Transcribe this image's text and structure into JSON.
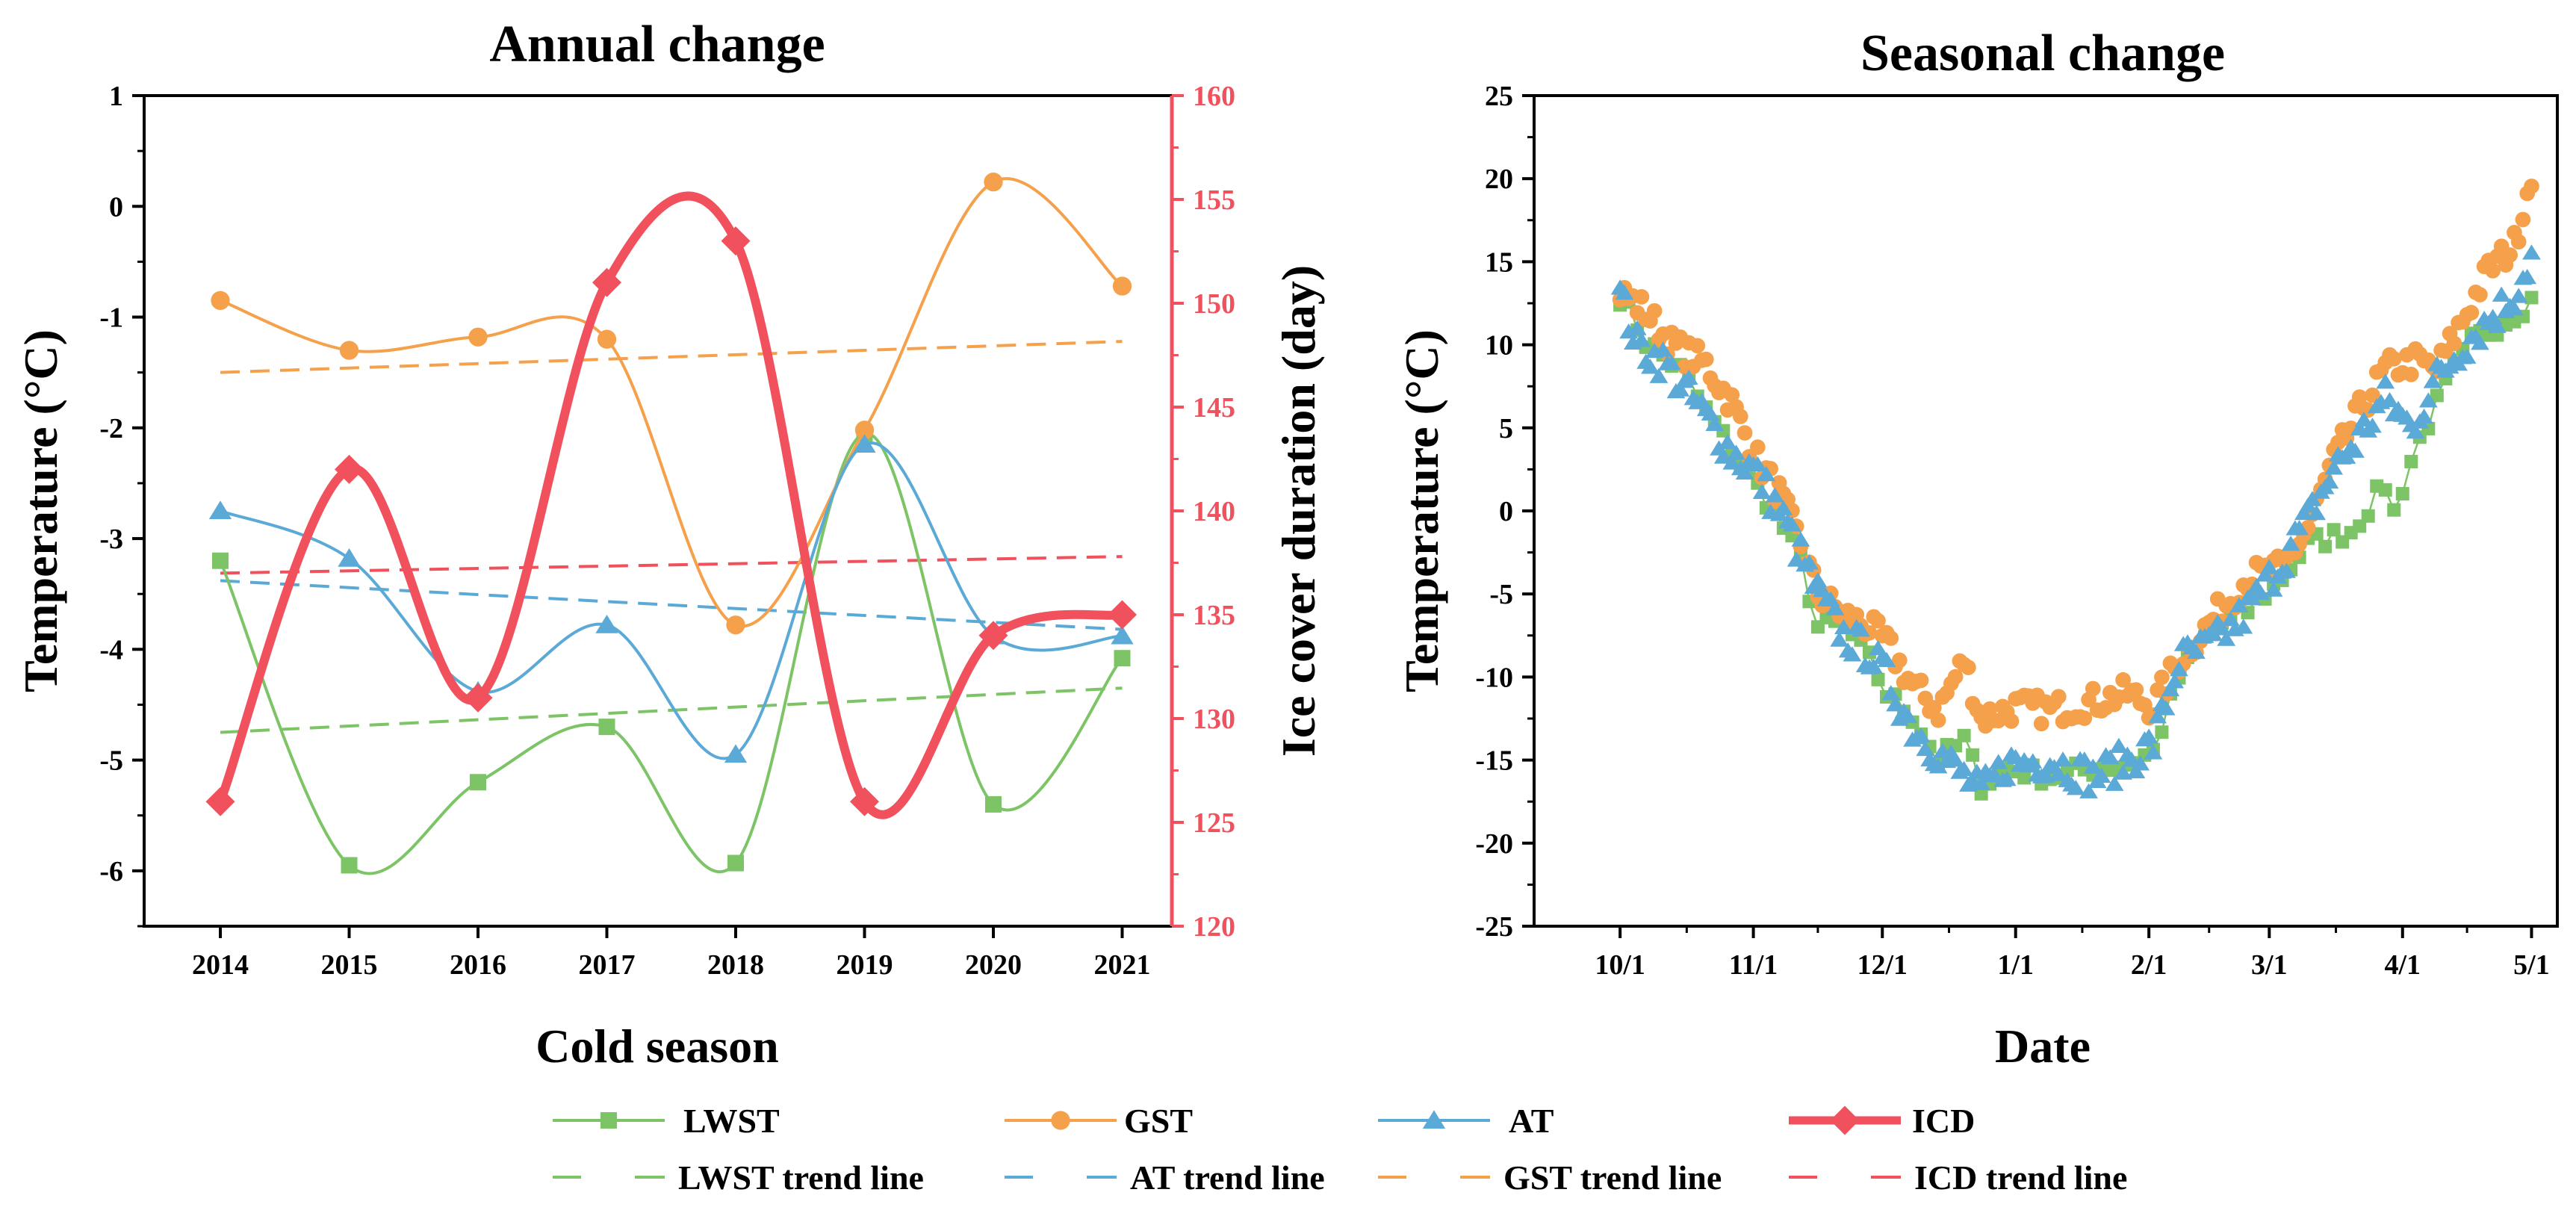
{
  "figure": {
    "left_title": "Annual change",
    "right_title": "Seasonal change"
  },
  "chart_data": [
    {
      "type": "line",
      "title": "Annual change",
      "xlabel": "Cold season",
      "ylabel": "Temperature (°C)",
      "y2label": "Ice cover duration (day)",
      "categories": [
        "2014",
        "2015",
        "2016",
        "2017",
        "2018",
        "2019",
        "2020",
        "2021"
      ],
      "ylim": [
        -6.5,
        1
      ],
      "yticks": [
        "1",
        "0",
        "-1",
        "-2",
        "-3",
        "-4",
        "-5",
        "-6"
      ],
      "y2lim": [
        120,
        160
      ],
      "y2ticks": [
        "160",
        "155",
        "150",
        "145",
        "140",
        "135",
        "130",
        "125",
        "120"
      ],
      "series": [
        {
          "name": "LWST",
          "axis": "left",
          "color": "#7cc466",
          "marker": "square",
          "values": [
            -3.2,
            -5.95,
            -5.2,
            -4.7,
            -5.93,
            -2.05,
            -5.4,
            -4.08
          ]
        },
        {
          "name": "GST",
          "axis": "left",
          "color": "#f5a04a",
          "marker": "circle",
          "values": [
            -0.85,
            -1.3,
            -1.18,
            -1.2,
            -3.78,
            -2.02,
            0.22,
            -0.72
          ]
        },
        {
          "name": "AT",
          "axis": "left",
          "color": "#5aa9d6",
          "marker": "triangle",
          "values": [
            -2.75,
            -3.18,
            -4.38,
            -3.78,
            -4.95,
            -2.15,
            -3.88,
            -3.88
          ]
        },
        {
          "name": "ICD",
          "axis": "right",
          "color": "#f0515c",
          "marker": "diamond",
          "values": [
            126,
            142,
            131,
            151,
            153,
            126,
            134,
            135
          ]
        }
      ],
      "trend_lines": [
        {
          "name": "LWST trend line",
          "axis": "left",
          "color": "#7cc466",
          "start": -4.75,
          "end": -4.35
        },
        {
          "name": "AT trend line",
          "axis": "left",
          "color": "#5aa9d6",
          "start": -3.38,
          "end": -3.82
        },
        {
          "name": "GST trend line",
          "axis": "left",
          "color": "#f5a04a",
          "start": -1.5,
          "end": -1.22
        },
        {
          "name": "ICD trend line",
          "axis": "right",
          "color": "#f0515c",
          "start": 137,
          "end": 137.8
        }
      ]
    },
    {
      "type": "scatter",
      "title": "Seasonal change",
      "xlabel": "Date",
      "ylabel": "Temperature (°C)",
      "xticks": [
        "10/1",
        "11/1",
        "12/1",
        "1/1",
        "2/1",
        "3/1",
        "4/1",
        "5/1"
      ],
      "xtick_days": [
        0,
        31,
        61,
        92,
        123,
        151,
        182,
        212
      ],
      "xlim": [
        -20,
        218
      ],
      "ylim": [
        -25,
        25
      ],
      "yticks": [
        "25",
        "20",
        "15",
        "10",
        "5",
        "0",
        "-5",
        "-10",
        "-15",
        "-20",
        "-25"
      ],
      "series": [
        {
          "name": "LWST",
          "color": "#7cc466",
          "marker": "square",
          "connected": true,
          "knots": [
            [
              0,
              13
            ],
            [
              6,
              10.2
            ],
            [
              14,
              8.5
            ],
            [
              22,
              5.2
            ],
            [
              31,
              1.8
            ],
            [
              36,
              0
            ],
            [
              42,
              -3
            ],
            [
              46,
              -7
            ],
            [
              52,
              -6.8
            ],
            [
              58,
              -9
            ],
            [
              62,
              -11
            ],
            [
              68,
              -12.3
            ],
            [
              74,
              -15
            ],
            [
              80,
              -13.8
            ],
            [
              84,
              -16.5
            ],
            [
              90,
              -15.5
            ],
            [
              100,
              -16
            ],
            [
              110,
              -15.5
            ],
            [
              118,
              -15.2
            ],
            [
              124,
              -14.5
            ],
            [
              130,
              -10
            ],
            [
              138,
              -7
            ],
            [
              146,
              -6
            ],
            [
              154,
              -4
            ],
            [
              160,
              -2
            ],
            [
              170,
              -1.2
            ],
            [
              178,
              1.6
            ],
            [
              180,
              -0.1
            ],
            [
              185,
              3.8
            ],
            [
              192,
              7.5
            ],
            [
              198,
              10.2
            ],
            [
              206,
              11.5
            ],
            [
              212,
              12.7
            ]
          ],
          "noise": 0.6,
          "step": 2
        },
        {
          "name": "GST",
          "color": "#f5a04a",
          "marker": "circle",
          "connected": false,
          "knots": [
            [
              0,
              13.2
            ],
            [
              6,
              12
            ],
            [
              12,
              10
            ],
            [
              20,
              8.8
            ],
            [
              26,
              6.5
            ],
            [
              31,
              3.5
            ],
            [
              37,
              1
            ],
            [
              42,
              -2
            ],
            [
              46,
              -5
            ],
            [
              52,
              -6.3
            ],
            [
              58,
              -7
            ],
            [
              62,
              -8
            ],
            [
              68,
              -10.5
            ],
            [
              74,
              -12
            ],
            [
              80,
              -9
            ],
            [
              84,
              -12.5
            ],
            [
              92,
              -11.8
            ],
            [
              100,
              -12
            ],
            [
              110,
              -11.5
            ],
            [
              118,
              -11
            ],
            [
              124,
              -11.8
            ],
            [
              130,
              -9
            ],
            [
              138,
              -6.5
            ],
            [
              146,
              -4
            ],
            [
              154,
              -3.5
            ],
            [
              160,
              -1
            ],
            [
              166,
              3
            ],
            [
              172,
              6
            ],
            [
              178,
              8.5
            ],
            [
              185,
              9
            ],
            [
              190,
              8.5
            ],
            [
              196,
              11.5
            ],
            [
              202,
              14.5
            ],
            [
              208,
              16
            ],
            [
              212,
              20.4
            ]
          ],
          "noise": 0.9,
          "step": 1
        },
        {
          "name": "AT",
          "color": "#5aa9d6",
          "marker": "triangle",
          "connected": false,
          "knots": [
            [
              0,
              13
            ],
            [
              4,
              10
            ],
            [
              10,
              9
            ],
            [
              16,
              7
            ],
            [
              22,
              5
            ],
            [
              26,
              3.5
            ],
            [
              31,
              2.5
            ],
            [
              36,
              0.5
            ],
            [
              40,
              -1.5
            ],
            [
              46,
              -5
            ],
            [
              52,
              -7.5
            ],
            [
              58,
              -8.5
            ],
            [
              62,
              -10
            ],
            [
              68,
              -13
            ],
            [
              74,
              -14.5
            ],
            [
              80,
              -16
            ],
            [
              84,
              -17
            ],
            [
              90,
              -15.2
            ],
            [
              100,
              -15
            ],
            [
              110,
              -16
            ],
            [
              118,
              -15
            ],
            [
              124,
              -14
            ],
            [
              130,
              -9
            ],
            [
              138,
              -8
            ],
            [
              146,
              -6
            ],
            [
              154,
              -3
            ],
            [
              160,
              -0.5
            ],
            [
              166,
              2.5
            ],
            [
              172,
              4.5
            ],
            [
              178,
              6.8
            ],
            [
              184,
              5
            ],
            [
              190,
              8
            ],
            [
              196,
              10
            ],
            [
              202,
              11.5
            ],
            [
              208,
              13
            ],
            [
              212,
              15.3
            ]
          ],
          "noise": 1.1,
          "step": 1
        }
      ]
    }
  ],
  "legend": {
    "row1": [
      {
        "key": "LWST",
        "label": "LWST",
        "color": "#7cc466",
        "marker": "square",
        "style": "solid"
      },
      {
        "key": "GST",
        "label": "GST",
        "color": "#f5a04a",
        "marker": "circle",
        "style": "solid"
      },
      {
        "key": "AT",
        "label": "AT",
        "color": "#5aa9d6",
        "marker": "triangle",
        "style": "solid"
      },
      {
        "key": "ICD",
        "label": "ICD",
        "color": "#f0515c",
        "marker": "diamond",
        "style": "solid"
      }
    ],
    "row2": [
      {
        "key": "LWST-trend",
        "label": "LWST trend line",
        "color": "#7cc466",
        "style": "dashed"
      },
      {
        "key": "AT-trend",
        "label": "AT trend line",
        "color": "#5aa9d6",
        "style": "dashed"
      },
      {
        "key": "GST-trend",
        "label": "GST trend line",
        "color": "#f5a04a",
        "style": "dashed"
      },
      {
        "key": "ICD-trend",
        "label": "ICD trend line",
        "color": "#f0515c",
        "style": "dashed"
      }
    ]
  }
}
